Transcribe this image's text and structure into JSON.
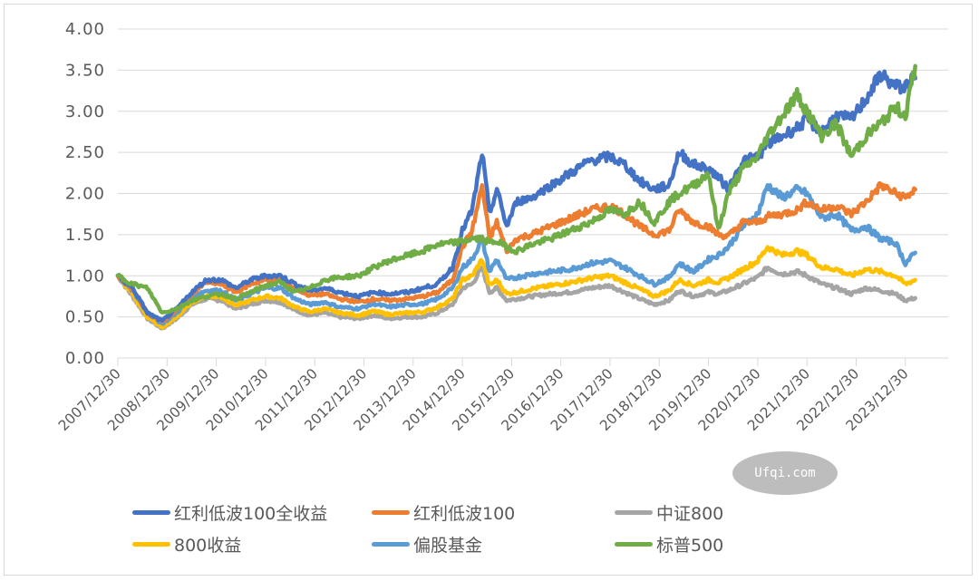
{
  "chart_data": {
    "type": "line",
    "title": "",
    "xlabel": "",
    "ylabel": "",
    "ylim": [
      0,
      4
    ],
    "yticks": [
      "0.00",
      "0.50",
      "1.00",
      "1.50",
      "2.00",
      "2.50",
      "3.00",
      "3.50",
      "4.00"
    ],
    "x_tick_labels": [
      "2007/12/30",
      "2008/12/30",
      "2009/12/30",
      "2010/12/30",
      "2011/12/30",
      "2012/12/30",
      "2013/12/30",
      "2014/12/30",
      "2015/12/30",
      "2016/12/30",
      "2017/12/30",
      "2018/12/30",
      "2019/12/30",
      "2020/12/30",
      "2021/12/30",
      "2022/12/30",
      "2023/12/30"
    ],
    "grid": "horizontal",
    "legend_position": "bottom",
    "x": [
      2008.0,
      2008.3,
      2008.6,
      2008.9,
      2009.2,
      2009.5,
      2009.8,
      2010.1,
      2010.4,
      2010.7,
      2011.0,
      2011.3,
      2011.6,
      2011.9,
      2012.2,
      2012.5,
      2012.9,
      2013.2,
      2013.5,
      2013.9,
      2014.2,
      2014.5,
      2014.8,
      2015.0,
      2015.2,
      2015.4,
      2015.55,
      2015.7,
      2015.9,
      2016.1,
      2016.4,
      2016.8,
      2017.2,
      2017.6,
      2018.0,
      2018.3,
      2018.6,
      2018.9,
      2019.2,
      2019.4,
      2019.7,
      2020.0,
      2020.2,
      2020.4,
      2020.7,
      2021.0,
      2021.2,
      2021.5,
      2021.8,
      2022.0,
      2022.3,
      2022.6,
      2022.9,
      2023.2,
      2023.5,
      2023.8,
      2024.0,
      2024.2
    ],
    "series": [
      {
        "name": "红利低波100全收益",
        "color": "#4472C4",
        "values": [
          1.0,
          0.85,
          0.55,
          0.45,
          0.6,
          0.8,
          0.95,
          0.95,
          0.85,
          0.95,
          1.0,
          1.0,
          0.9,
          0.82,
          0.85,
          0.8,
          0.75,
          0.8,
          0.78,
          0.8,
          0.85,
          0.9,
          1.1,
          1.55,
          1.8,
          2.5,
          1.75,
          2.05,
          1.6,
          1.9,
          1.95,
          2.1,
          2.25,
          2.4,
          2.45,
          2.35,
          2.15,
          2.05,
          2.1,
          2.5,
          2.35,
          2.3,
          2.2,
          2.05,
          2.4,
          2.45,
          2.6,
          2.7,
          2.8,
          2.9,
          2.75,
          2.95,
          2.9,
          3.15,
          3.45,
          3.3,
          3.3,
          3.4
        ]
      },
      {
        "name": "红利低波100",
        "color": "#ED7D31",
        "values": [
          1.0,
          0.83,
          0.55,
          0.44,
          0.58,
          0.78,
          0.92,
          0.9,
          0.8,
          0.9,
          0.95,
          0.95,
          0.85,
          0.76,
          0.78,
          0.72,
          0.68,
          0.72,
          0.7,
          0.72,
          0.75,
          0.8,
          0.95,
          1.35,
          1.55,
          2.1,
          1.45,
          1.65,
          1.3,
          1.45,
          1.5,
          1.6,
          1.7,
          1.8,
          1.85,
          1.75,
          1.6,
          1.5,
          1.55,
          1.8,
          1.65,
          1.6,
          1.5,
          1.48,
          1.65,
          1.65,
          1.72,
          1.75,
          1.8,
          1.9,
          1.8,
          1.85,
          1.75,
          1.9,
          2.1,
          2.0,
          1.95,
          2.05
        ]
      },
      {
        "name": "中证800",
        "color": "#A5A5A5",
        "values": [
          1.0,
          0.75,
          0.48,
          0.36,
          0.48,
          0.65,
          0.72,
          0.7,
          0.6,
          0.65,
          0.7,
          0.68,
          0.58,
          0.52,
          0.55,
          0.5,
          0.48,
          0.52,
          0.48,
          0.5,
          0.5,
          0.55,
          0.65,
          0.85,
          0.9,
          1.1,
          0.8,
          0.85,
          0.7,
          0.72,
          0.75,
          0.78,
          0.8,
          0.85,
          0.88,
          0.8,
          0.72,
          0.65,
          0.7,
          0.82,
          0.75,
          0.8,
          0.78,
          0.82,
          0.9,
          0.98,
          1.1,
          1.02,
          1.05,
          1.0,
          0.9,
          0.85,
          0.78,
          0.85,
          0.82,
          0.78,
          0.7,
          0.73
        ]
      },
      {
        "name": "800收益",
        "color": "#FFC000",
        "values": [
          1.0,
          0.77,
          0.5,
          0.37,
          0.5,
          0.68,
          0.76,
          0.74,
          0.64,
          0.7,
          0.75,
          0.73,
          0.62,
          0.56,
          0.6,
          0.55,
          0.52,
          0.57,
          0.53,
          0.55,
          0.56,
          0.62,
          0.72,
          0.95,
          1.0,
          1.2,
          0.88,
          0.95,
          0.78,
          0.8,
          0.84,
          0.88,
          0.92,
          0.97,
          1.0,
          0.92,
          0.84,
          0.75,
          0.82,
          0.95,
          0.88,
          0.95,
          0.92,
          0.97,
          1.08,
          1.18,
          1.35,
          1.25,
          1.3,
          1.25,
          1.1,
          1.08,
          1.0,
          1.08,
          1.05,
          1.0,
          0.9,
          0.95
        ]
      },
      {
        "name": "偏股基金",
        "color": "#5B9BD5",
        "values": [
          1.0,
          0.82,
          0.55,
          0.42,
          0.55,
          0.75,
          0.82,
          0.82,
          0.7,
          0.78,
          0.85,
          0.85,
          0.72,
          0.65,
          0.68,
          0.62,
          0.6,
          0.66,
          0.62,
          0.65,
          0.66,
          0.72,
          0.85,
          1.1,
          1.2,
          1.45,
          1.05,
          1.2,
          0.95,
          0.98,
          1.02,
          1.05,
          1.08,
          1.15,
          1.18,
          1.1,
          1.0,
          0.9,
          0.98,
          1.15,
          1.05,
          1.2,
          1.25,
          1.35,
          1.6,
          1.75,
          2.1,
          1.95,
          2.05,
          2.0,
          1.7,
          1.75,
          1.55,
          1.6,
          1.45,
          1.4,
          1.15,
          1.28
        ]
      },
      {
        "name": "标普500",
        "color": "#70AD47",
        "values": [
          1.0,
          0.9,
          0.85,
          0.55,
          0.6,
          0.7,
          0.75,
          0.78,
          0.72,
          0.8,
          0.88,
          0.92,
          0.8,
          0.85,
          0.95,
          0.98,
          1.0,
          1.1,
          1.18,
          1.25,
          1.3,
          1.38,
          1.4,
          1.42,
          1.45,
          1.45,
          1.4,
          1.42,
          1.35,
          1.3,
          1.38,
          1.45,
          1.55,
          1.65,
          1.8,
          1.75,
          1.9,
          1.65,
          1.9,
          2.0,
          2.1,
          2.25,
          1.55,
          2.0,
          2.3,
          2.45,
          2.7,
          2.95,
          3.2,
          3.0,
          2.7,
          2.85,
          2.45,
          2.7,
          2.85,
          3.05,
          2.95,
          3.55
        ]
      }
    ]
  },
  "legend": {
    "items": [
      {
        "label": "红利低波100全收益",
        "color": "#4472C4"
      },
      {
        "label": "红利低波100",
        "color": "#ED7D31"
      },
      {
        "label": "中证800",
        "color": "#A5A5A5"
      },
      {
        "label": "800收益",
        "color": "#FFC000"
      },
      {
        "label": "偏股基金",
        "color": "#5B9BD5"
      },
      {
        "label": "标普500",
        "color": "#70AD47"
      }
    ]
  },
  "watermark": {
    "text": "Ufqi.com"
  }
}
